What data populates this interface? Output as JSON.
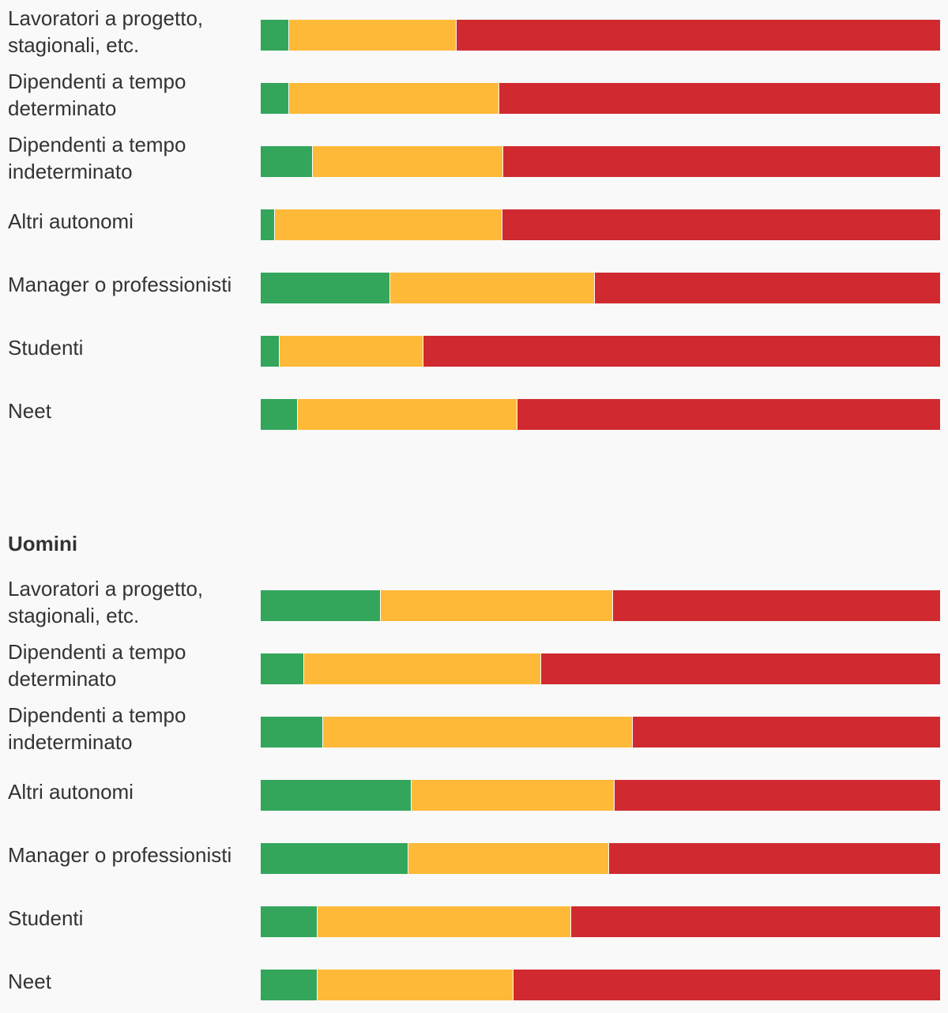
{
  "colors": {
    "green": "#33a65c",
    "yellow": "#ffb938",
    "red": "#d02a30"
  },
  "chart_data": [
    {
      "type": "bar",
      "orientation": "horizontal",
      "stacked": true,
      "normalized": true,
      "title": "",
      "categories": [
        "Lavoratori a progetto, stagionali, etc.",
        "Dipendenti a tempo determinato",
        "Dipendenti a tempo indeterminato",
        "Altri autonomi",
        "Manager o professionisti",
        "Studenti",
        "Neet"
      ],
      "series": [
        {
          "color": "green",
          "values": [
            4.1,
            4.1,
            7.5,
            2.0,
            18.9,
            2.7,
            5.3
          ]
        },
        {
          "color": "yellow",
          "values": [
            24.7,
            30.9,
            28.0,
            33.5,
            30.1,
            21.2,
            32.3
          ]
        },
        {
          "color": "red",
          "values": [
            71.2,
            65.0,
            64.5,
            64.5,
            51.0,
            76.1,
            62.4
          ]
        }
      ],
      "xlim": [
        0,
        100
      ]
    },
    {
      "type": "bar",
      "orientation": "horizontal",
      "stacked": true,
      "normalized": true,
      "title": "Uomini",
      "categories": [
        "Lavoratori a progetto, stagionali, etc.",
        "Dipendenti a tempo determinato",
        "Dipendenti a tempo indeterminato",
        "Altri autonomi",
        "Manager o professionisti",
        "Studenti",
        "Neet"
      ],
      "series": [
        {
          "color": "green",
          "values": [
            17.6,
            6.3,
            9.1,
            22.1,
            21.6,
            8.3,
            8.3
          ]
        },
        {
          "color": "yellow",
          "values": [
            34.2,
            34.9,
            45.6,
            29.9,
            29.5,
            37.3,
            28.8
          ]
        },
        {
          "color": "red",
          "values": [
            48.2,
            58.8,
            45.3,
            48.0,
            48.9,
            54.4,
            62.9
          ]
        }
      ],
      "xlim": [
        0,
        100
      ]
    }
  ]
}
